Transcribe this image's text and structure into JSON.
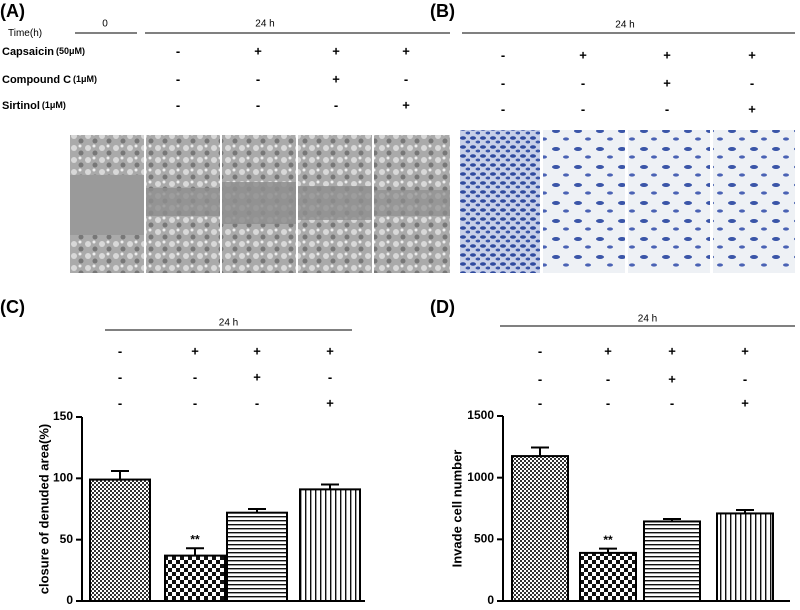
{
  "panel_a": {
    "label": "(A)",
    "time_label": "Time",
    "time_unit": "(h)",
    "time_0": "0",
    "time_24": "24 h",
    "rows": [
      {
        "name": "Capsaicin",
        "dose": "(50μM)",
        "signs": [
          "-",
          "+",
          "+",
          "+"
        ]
      },
      {
        "name": "Compound C",
        "dose": "(1μM)",
        "signs": [
          "-",
          "-",
          "+",
          "-"
        ]
      },
      {
        "name": "Sirtinol",
        "dose": "(1μM)",
        "signs": [
          "-",
          "-",
          "-",
          "+"
        ]
      }
    ]
  },
  "panel_b": {
    "label": "(B)",
    "time_24": "24 h",
    "rows": [
      [
        "-",
        "+",
        "+",
        "+"
      ],
      [
        "-",
        "-",
        "+",
        "-"
      ],
      [
        "-",
        "-",
        "-",
        "+"
      ]
    ]
  },
  "chart_data": [
    {
      "type": "bar",
      "panel_label": "(C)",
      "header": "24 h",
      "conditions": [
        [
          "-",
          "+",
          "+",
          "+"
        ],
        [
          "-",
          "-",
          "+",
          "-"
        ],
        [
          "-",
          "-",
          "-",
          "+"
        ]
      ],
      "categories": [
        null,
        null,
        null,
        null
      ],
      "values": [
        99,
        37,
        72,
        91
      ],
      "errors": [
        7,
        6,
        3,
        4
      ],
      "annotations": [
        null,
        "**",
        null,
        null
      ],
      "patterns": [
        "crosshatch",
        "checker",
        "horizontal",
        "vertical"
      ],
      "y_label": "closure of denuded area(%)",
      "ylim": [
        0,
        150
      ],
      "yticks": [
        0,
        50,
        100,
        150
      ]
    },
    {
      "type": "bar",
      "panel_label": "(D)",
      "header": "24 h",
      "conditions": [
        [
          "-",
          "+",
          "+",
          "+"
        ],
        [
          "-",
          "-",
          "+",
          "-"
        ],
        [
          "-",
          "-",
          "-",
          "+"
        ]
      ],
      "categories": [
        null,
        null,
        null,
        null
      ],
      "values": [
        1175,
        390,
        645,
        710
      ],
      "errors": [
        70,
        35,
        20,
        28
      ],
      "annotations": [
        null,
        "**",
        null,
        null
      ],
      "patterns": [
        "crosshatch",
        "checker",
        "horizontal",
        "vertical"
      ],
      "y_label": "Invade cell number",
      "ylim": [
        0,
        1500
      ],
      "yticks": [
        0,
        500,
        1000,
        1500
      ]
    }
  ]
}
